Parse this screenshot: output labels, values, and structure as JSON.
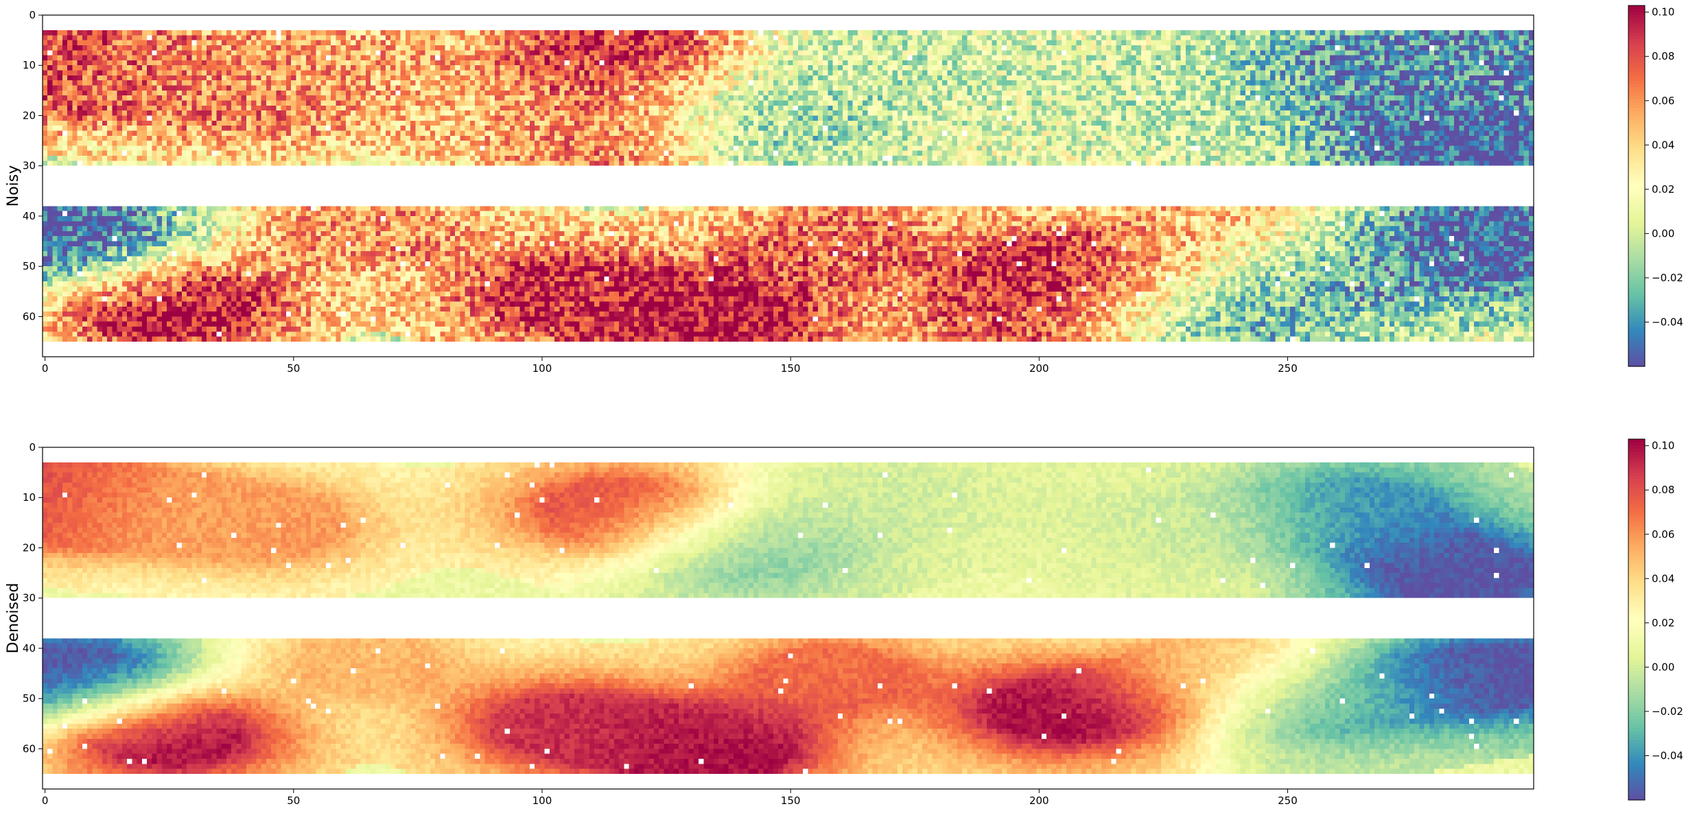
{
  "chart_data": [
    {
      "type": "heatmap",
      "title": "",
      "ylabel": "Noisy",
      "xlabel": "",
      "xlim": [
        0,
        299
      ],
      "ylim": [
        68,
        0
      ],
      "xticks": [
        0,
        50,
        100,
        150,
        200,
        250
      ],
      "yticks": [
        0,
        10,
        20,
        30,
        40,
        50,
        60
      ],
      "data_rows": [
        [
          3,
          30
        ],
        [
          38,
          65
        ]
      ],
      "missing_rows": [
        30,
        38
      ],
      "colorbar": {
        "min": -0.06,
        "max": 0.103,
        "ticks": [
          -0.04,
          -0.02,
          0.0,
          0.02,
          0.04,
          0.06,
          0.08,
          0.1
        ],
        "tick_labels": [
          "−0.04",
          "−0.02",
          "0.00",
          "0.02",
          "0.04",
          "0.06",
          "0.08",
          "0.10"
        ],
        "colormap": "Spectral_r"
      },
      "grid": false,
      "noise": "high",
      "approx_field": {
        "upper_band": [
          [
            0,
            10,
            0.09
          ],
          [
            20,
            12,
            0.06
          ],
          [
            45,
            15,
            0.07
          ],
          [
            60,
            10,
            0.05
          ],
          [
            115,
            8,
            0.09
          ],
          [
            113,
            22,
            0.08
          ],
          [
            85,
            20,
            0.04
          ],
          [
            140,
            20,
            -0.02
          ],
          [
            170,
            10,
            0.0
          ],
          [
            230,
            15,
            0.0
          ],
          [
            265,
            12,
            -0.04
          ],
          [
            285,
            25,
            -0.06
          ],
          [
            295,
            5,
            -0.04
          ]
        ],
        "lower_band": [
          [
            5,
            45,
            -0.06
          ],
          [
            25,
            57,
            0.1
          ],
          [
            65,
            42,
            0.06
          ],
          [
            105,
            55,
            0.09
          ],
          [
            135,
            60,
            0.1
          ],
          [
            158,
            45,
            0.07
          ],
          [
            205,
            52,
            0.1
          ],
          [
            200,
            62,
            0.08
          ],
          [
            235,
            43,
            0.05
          ],
          [
            260,
            50,
            -0.03
          ],
          [
            292,
            45,
            -0.06
          ],
          [
            230,
            60,
            -0.03
          ]
        ]
      }
    },
    {
      "type": "heatmap",
      "title": "",
      "ylabel": "Denoised",
      "xlabel": "",
      "xlim": [
        0,
        299
      ],
      "ylim": [
        68,
        0
      ],
      "xticks": [
        0,
        50,
        100,
        150,
        200,
        250
      ],
      "yticks": [
        0,
        10,
        20,
        30,
        40,
        50,
        60
      ],
      "data_rows": [
        [
          3,
          30
        ],
        [
          38,
          65
        ]
      ],
      "missing_rows": [
        30,
        38
      ],
      "colorbar": {
        "min": -0.06,
        "max": 0.103,
        "ticks": [
          -0.04,
          -0.02,
          0.0,
          0.02,
          0.04,
          0.06,
          0.08,
          0.1
        ],
        "tick_labels": [
          "−0.04",
          "−0.02",
          "0.00",
          "0.02",
          "0.04",
          "0.06",
          "0.08",
          "0.10"
        ],
        "colormap": "Spectral_r"
      },
      "grid": false,
      "noise": "low",
      "approx_field": {
        "upper_band": [
          [
            0,
            10,
            0.09
          ],
          [
            20,
            12,
            0.05
          ],
          [
            45,
            15,
            0.06
          ],
          [
            115,
            12,
            0.08
          ],
          [
            140,
            20,
            -0.02
          ],
          [
            170,
            10,
            0.0
          ],
          [
            230,
            15,
            0.0
          ],
          [
            265,
            12,
            -0.04
          ],
          [
            285,
            25,
            -0.06
          ]
        ],
        "lower_band": [
          [
            5,
            45,
            -0.06
          ],
          [
            25,
            57,
            0.1
          ],
          [
            65,
            42,
            0.05
          ],
          [
            105,
            55,
            0.09
          ],
          [
            135,
            60,
            0.1
          ],
          [
            158,
            45,
            0.07
          ],
          [
            205,
            52,
            0.1
          ],
          [
            235,
            43,
            0.05
          ],
          [
            260,
            50,
            -0.03
          ],
          [
            292,
            45,
            -0.06
          ]
        ]
      }
    }
  ]
}
